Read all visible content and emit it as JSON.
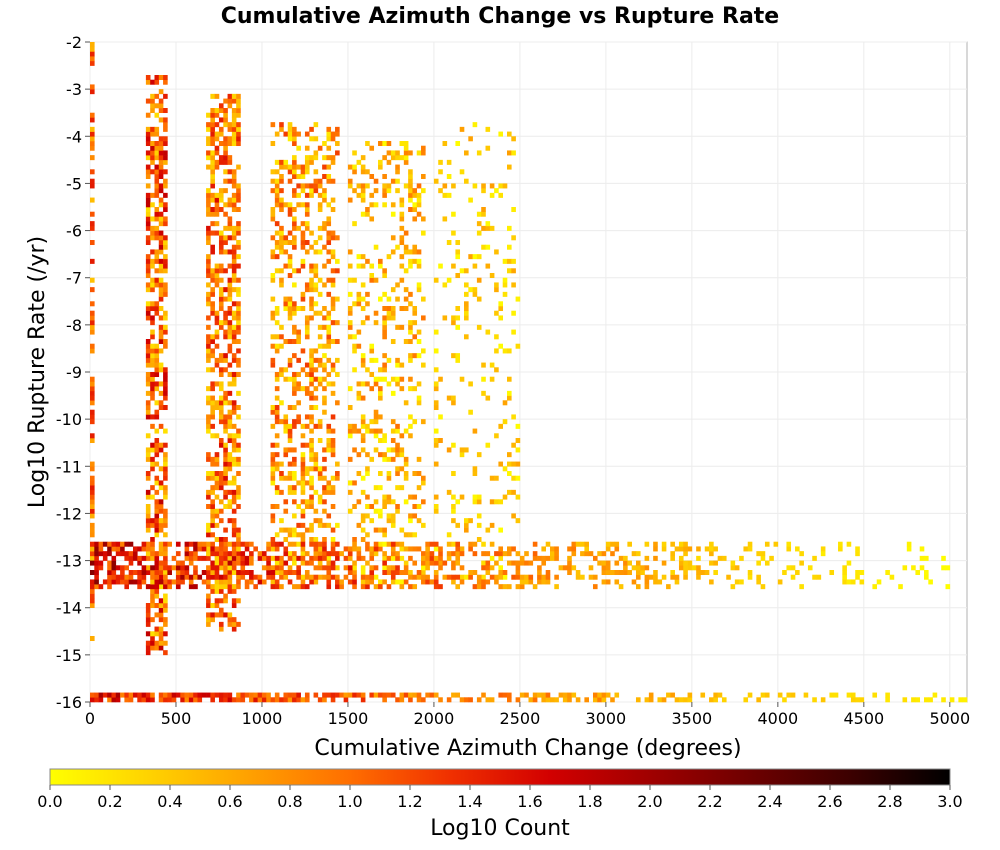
{
  "chart_data": {
    "type": "heatmap",
    "title": "Cumulative Azimuth Change vs Rupture Rate",
    "xlabel": "Cumulative Azimuth Change (degrees)",
    "ylabel": "Log10 Rupture Rate (/yr)",
    "xlim": [
      0,
      5100
    ],
    "ylim": [
      -16,
      -2
    ],
    "x_ticks": [
      "0",
      "500",
      "1000",
      "1500",
      "2000",
      "2500",
      "3000",
      "3500",
      "4000",
      "4500",
      "5000"
    ],
    "y_ticks": [
      "-2",
      "-3",
      "-4",
      "-5",
      "-6",
      "-7",
      "-8",
      "-9",
      "-10",
      "-11",
      "-12",
      "-13",
      "-14",
      "-15",
      "-16"
    ],
    "grid": true,
    "cell_width_deg": 25,
    "cell_height_log10": 0.1,
    "colorbar": {
      "label": "Log10 Count",
      "range": [
        0.0,
        3.0
      ],
      "ticks": [
        "0.0",
        "0.2",
        "0.4",
        "0.6",
        "0.8",
        "1.0",
        "1.2",
        "1.4",
        "1.6",
        "1.8",
        "2.0",
        "2.2",
        "2.4",
        "2.6",
        "2.8",
        "3.0"
      ],
      "colormap": [
        "#ffff00",
        "#ffd200",
        "#ffa000",
        "#ff6e00",
        "#f03000",
        "#d20000",
        "#a00000",
        "#6e0000",
        "#3c0000",
        "#000000"
      ]
    },
    "regions": [
      {
        "name": "column-near-zero",
        "x_range": [
          0,
          25
        ],
        "y_range": [
          -15,
          -2.1
        ],
        "log10_count_range": [
          0.4,
          1.5
        ]
      },
      {
        "name": "column-350",
        "x_range": [
          325,
          450
        ],
        "y_range": [
          -15,
          -2.8
        ],
        "log10_count_range": [
          0.2,
          1.8
        ]
      },
      {
        "name": "column-700",
        "x_range": [
          675,
          875
        ],
        "y_range": [
          -14.5,
          -3.2
        ],
        "log10_count_range": [
          0.2,
          1.6
        ]
      },
      {
        "name": "column-1100",
        "x_range": [
          1050,
          1450
        ],
        "y_range": [
          -13.5,
          -3.8
        ],
        "log10_count_range": [
          0.1,
          1.3
        ]
      },
      {
        "name": "column-1600",
        "x_range": [
          1500,
          1950
        ],
        "y_range": [
          -13.5,
          -4.2
        ],
        "log10_count_range": [
          0.0,
          1.0
        ]
      },
      {
        "name": "column-2000",
        "x_range": [
          2000,
          2500
        ],
        "y_range": [
          -13.5,
          -3.8
        ],
        "log10_count_range": [
          0.0,
          0.7
        ]
      },
      {
        "name": "band-minus-13",
        "x_range": [
          0,
          5000
        ],
        "y_range": [
          -13.6,
          -12.7
        ],
        "log10_count_range": [
          0.0,
          2.2
        ]
      },
      {
        "name": "band-minus-16",
        "x_range": [
          0,
          5100
        ],
        "y_range": [
          -16,
          -15.8
        ],
        "log10_count_range": [
          0.1,
          2.0
        ]
      }
    ]
  }
}
